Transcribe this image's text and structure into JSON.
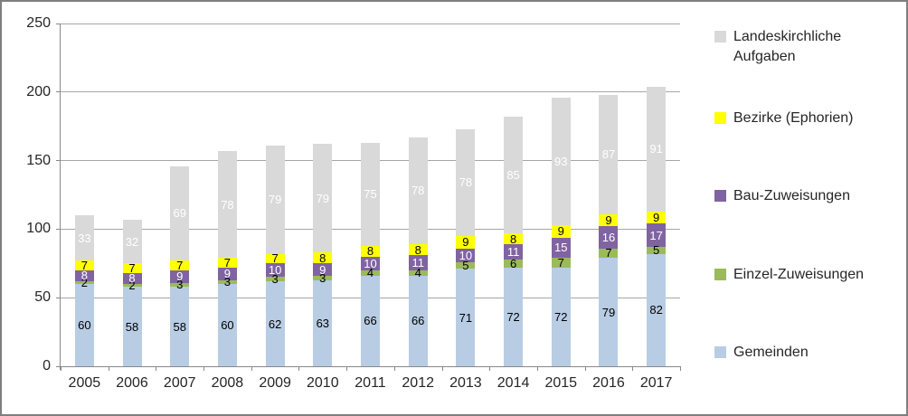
{
  "chart_data": {
    "type": "bar",
    "stacked": true,
    "title": "",
    "xlabel": "",
    "ylabel": "",
    "categories": [
      "2005",
      "2006",
      "2007",
      "2008",
      "2009",
      "2010",
      "2011",
      "2012",
      "2013",
      "2014",
      "2015",
      "2016",
      "2017"
    ],
    "series": [
      {
        "name": "Gemeinden",
        "color": "#B8CCE4",
        "label_color": "#000000",
        "values": [
          60,
          58,
          58,
          60,
          62,
          63,
          66,
          66,
          71,
          72,
          72,
          79,
          82
        ]
      },
      {
        "name": "Einzel-Zuweisungen",
        "color": "#9BBB59",
        "label_color": "#000000",
        "values": [
          2,
          2,
          3,
          3,
          3,
          3,
          4,
          4,
          5,
          6,
          7,
          7,
          5
        ]
      },
      {
        "name": "Bau-Zuweisungen",
        "color": "#8064A2",
        "label_color": "#FFFFFF",
        "values": [
          8,
          8,
          9,
          9,
          10,
          9,
          10,
          11,
          10,
          11,
          15,
          16,
          17
        ]
      },
      {
        "name": "Bezirke (Ephorien)",
        "color": "#FFFF00",
        "label_color": "#000000",
        "values": [
          7,
          7,
          7,
          7,
          7,
          8,
          8,
          8,
          9,
          8,
          9,
          9,
          9
        ]
      },
      {
        "name": "Landeskirchliche Aufgaben",
        "color": "#D9D9D9",
        "label_color": "#FFFFFF",
        "values": [
          33,
          32,
          69,
          78,
          79,
          79,
          75,
          78,
          78,
          85,
          93,
          87,
          91
        ]
      }
    ],
    "y_ticks": [
      0,
      50,
      100,
      150,
      200,
      250
    ],
    "ylim": [
      0,
      250
    ],
    "grid": true,
    "legend_position": "right",
    "legend": [
      {
        "label": "Landeskirchliche Aufgaben",
        "series": "Landeskirchliche Aufgaben"
      },
      {
        "label": "Bezirke (Ephorien)",
        "series": "Bezirke (Ephorien)"
      },
      {
        "label": "Bau-Zuweisungen",
        "series": "Bau-Zuweisungen"
      },
      {
        "label": "Einzel-Zuweisungen",
        "series": "Einzel-Zuweisungen"
      },
      {
        "label": "Gemeinden",
        "series": "Gemeinden"
      }
    ]
  }
}
